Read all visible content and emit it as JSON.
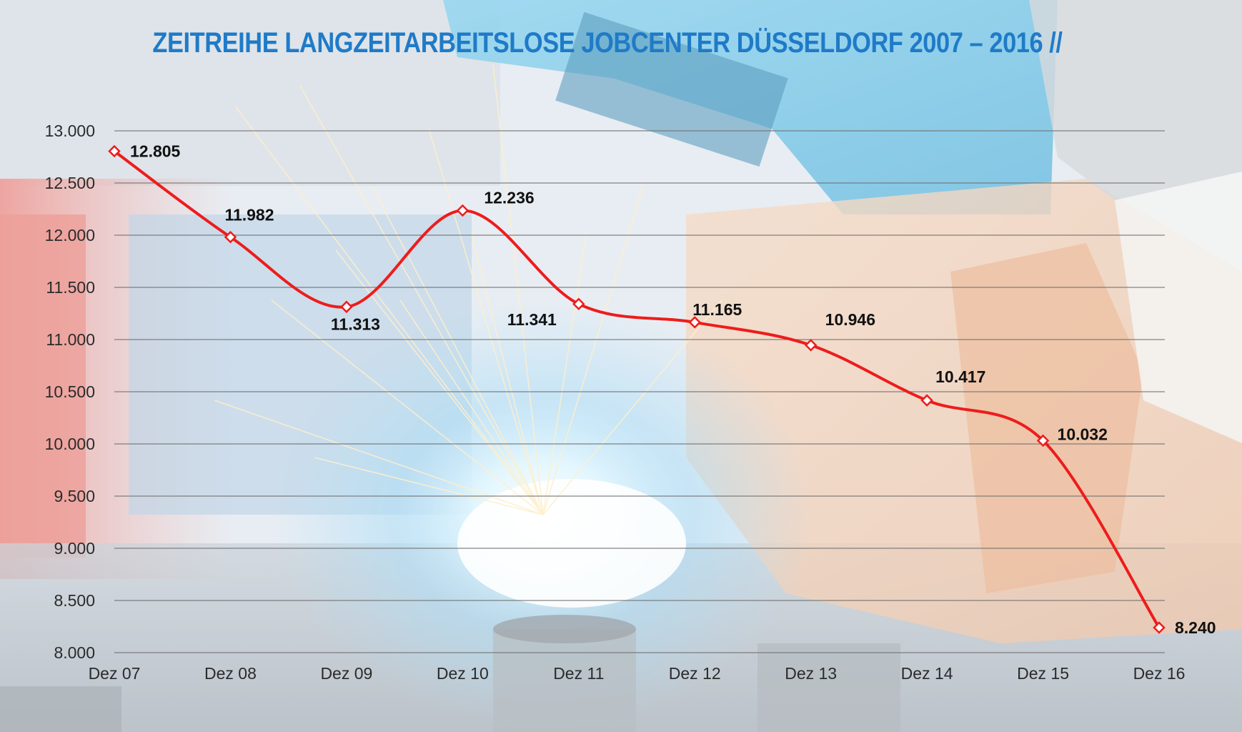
{
  "chart_data": {
    "type": "line",
    "title": "ZEITREIHE LANGZEITARBEITSLOSE JOBCENTER DÜSSELDORF 2007 – 2016 //",
    "xlabel": "",
    "ylabel": "",
    "categories": [
      "Dez 07",
      "Dez 08",
      "Dez 09",
      "Dez 10",
      "Dez 11",
      "Dez 12",
      "Dez 13",
      "Dez 14",
      "Dez 15",
      "Dez 16"
    ],
    "series": [
      {
        "values": [
          12805,
          11982,
          11313,
          12236,
          11341,
          11165,
          10946,
          10417,
          10032,
          8240
        ],
        "value_labels": [
          "12.805",
          "11.982",
          "11.313",
          "12.236",
          "11.341",
          "11.165",
          "10.946",
          "10.417",
          "10.032",
          "8.240"
        ],
        "color": "#ee1c1c"
      }
    ],
    "ylim": [
      8000,
      13000
    ],
    "yticks": [
      8000,
      8500,
      9000,
      9500,
      10000,
      10500,
      11000,
      11500,
      12000,
      12500,
      13000
    ],
    "ytick_labels": [
      "8.000",
      "8.500",
      "9.000",
      "9.500",
      "10.000",
      "10.500",
      "11.000",
      "11.500",
      "12.000",
      "12.500",
      "13.000"
    ],
    "grid": true,
    "smooth": true,
    "marker": "diamond",
    "legend": "none"
  }
}
